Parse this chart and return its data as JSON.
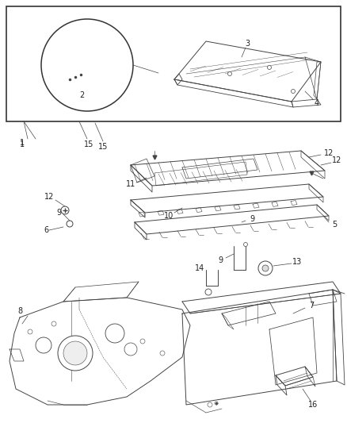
{
  "bg": "#ffffff",
  "lc": "#444444",
  "lw_main": 0.8,
  "lw_thin": 0.5,
  "lw_thick": 1.0,
  "fs": 7,
  "fig_w": 4.38,
  "fig_h": 5.33,
  "dpi": 100
}
